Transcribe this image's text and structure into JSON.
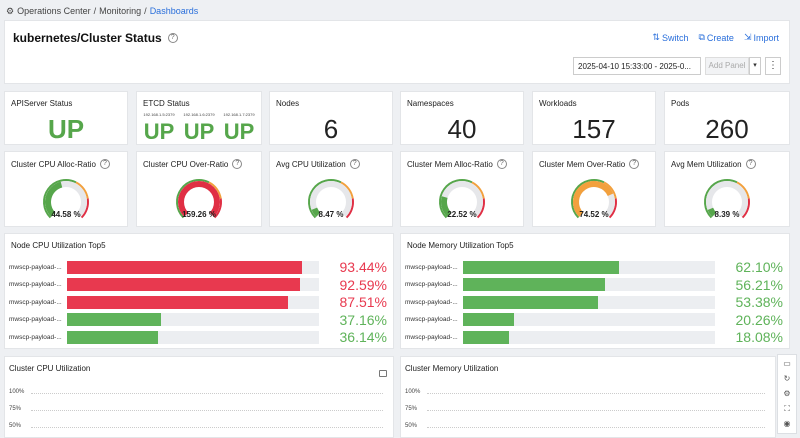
{
  "breadcrumb": {
    "root": "Operations Center",
    "mid": "Monitoring",
    "current": "Dashboards"
  },
  "header": {
    "title": "kubernetes/Cluster Status",
    "actions": {
      "switch": "Switch",
      "create": "Create",
      "import": "Import"
    },
    "date_range": "2025-04-10 15:33:00 - 2025-0...",
    "add_panel": "Add Panel"
  },
  "stats": {
    "apiserver": {
      "title": "APIServer Status",
      "value": "UP"
    },
    "etcd": {
      "title": "ETCD Status",
      "nodes": [
        {
          "ip": "192.168.1.5:2379",
          "value": "UP"
        },
        {
          "ip": "192.168.1.6:2379",
          "value": "UP"
        },
        {
          "ip": "192.168.1.7:2379",
          "value": "UP"
        }
      ]
    },
    "nodes": {
      "title": "Nodes",
      "value": "6"
    },
    "namespaces": {
      "title": "Namespaces",
      "value": "40"
    },
    "workloads": {
      "title": "Workloads",
      "value": "157"
    },
    "pods": {
      "title": "Pods",
      "value": "260"
    }
  },
  "gauges": [
    {
      "title": "Cluster CPU Alloc-Ratio",
      "value": 44.58,
      "label": "44.58 %",
      "color": "#56a64b"
    },
    {
      "title": "Cluster CPU Over-Ratio",
      "value": 159.26,
      "label": "159.26 %",
      "color": "#e02f44"
    },
    {
      "title": "Avg CPU Utilization",
      "value": 8.47,
      "label": "8.47 %",
      "color": "#56a64b"
    },
    {
      "title": "Cluster Mem Alloc-Ratio",
      "value": 22.52,
      "label": "22.52 %",
      "color": "#56a64b"
    },
    {
      "title": "Cluster Mem Over-Ratio",
      "value": 74.52,
      "label": "74.52 %",
      "color": "#f2a03d"
    },
    {
      "title": "Avg Mem Utilization",
      "value": 8.39,
      "label": "8.39 %",
      "color": "#56a64b"
    }
  ],
  "cpu_top5": {
    "title": "Node CPU Utilization Top5",
    "rows": [
      {
        "node": "mwscp-payload-...",
        "value": 93.44,
        "label": "93.44%",
        "color": "#e8394f"
      },
      {
        "node": "mwscp-payload-...",
        "value": 92.59,
        "label": "92.59%",
        "color": "#e8394f"
      },
      {
        "node": "mwscp-payload-...",
        "value": 87.51,
        "label": "87.51%",
        "color": "#e8394f"
      },
      {
        "node": "mwscp-payload-...",
        "value": 37.16,
        "label": "37.16%",
        "color": "#5fb35a"
      },
      {
        "node": "mwscp-payload-...",
        "value": 36.14,
        "label": "36.14%",
        "color": "#5fb35a"
      }
    ]
  },
  "mem_top5": {
    "title": "Node Memory Utilization Top5",
    "rows": [
      {
        "node": "mwscp-payload-...",
        "value": 62.1,
        "label": "62.10%",
        "color": "#5fb35a"
      },
      {
        "node": "mwscp-payload-...",
        "value": 56.21,
        "label": "56.21%",
        "color": "#5fb35a"
      },
      {
        "node": "mwscp-payload-...",
        "value": 53.38,
        "label": "53.38%",
        "color": "#5fb35a"
      },
      {
        "node": "mwscp-payload-...",
        "value": 20.26,
        "label": "20.26%",
        "color": "#5fb35a"
      },
      {
        "node": "mwscp-payload-...",
        "value": 18.08,
        "label": "18.08%",
        "color": "#5fb35a"
      }
    ]
  },
  "cpu_chart": {
    "title": "Cluster CPU Utilization",
    "ticks": [
      "100%",
      "75%",
      "50%"
    ]
  },
  "mem_chart": {
    "title": "Cluster Memory Utilization",
    "ticks": [
      "100%",
      "75%",
      "50%"
    ]
  },
  "icons": {
    "colors": {
      "accent": "#2a6fdb",
      "ok": "#56a64b",
      "warn": "#f2a03d",
      "bad": "#e02f44"
    }
  }
}
